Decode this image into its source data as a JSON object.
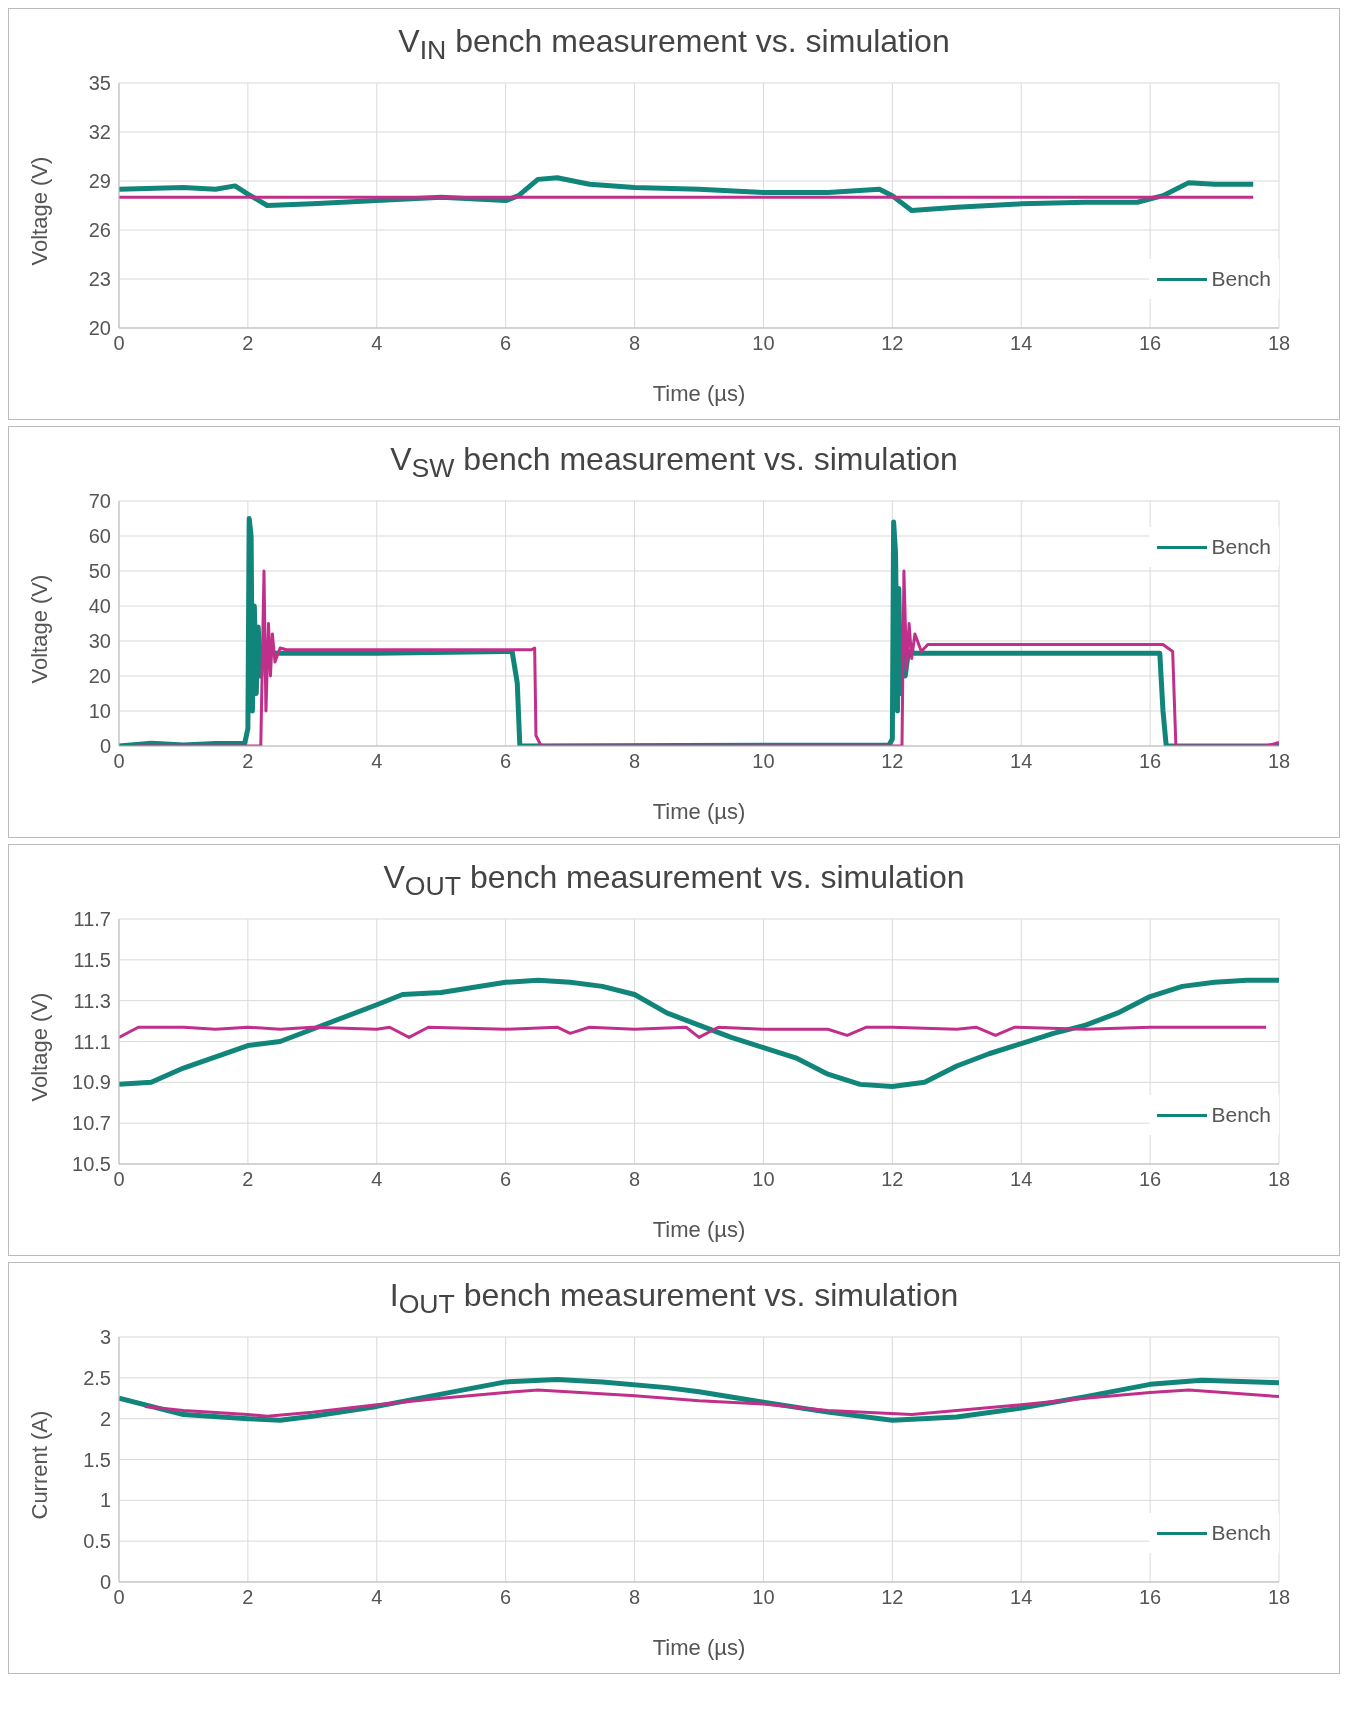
{
  "chart_data": [
    {
      "type": "line",
      "title": "V$_{IN}$ bench measurement vs. simulation",
      "xlabel": "Time (µs)",
      "ylabel": "Voltage (V)",
      "xlim": [
        0,
        18
      ],
      "xticks": [
        0,
        2,
        4,
        6,
        8,
        10,
        12,
        14,
        16,
        18
      ],
      "ylim": [
        20,
        35
      ],
      "yticks": [
        20,
        23,
        26,
        29,
        32,
        35
      ],
      "grid": true,
      "legend": "bottom right",
      "marker": "none",
      "line_style": "solid",
      "series": [
        {
          "name": "Bench",
          "color": "#12857a",
          "x": [
            0,
            1,
            1.5,
            1.8,
            2.0,
            2.3,
            3,
            4,
            5,
            6,
            6.2,
            6.5,
            6.8,
            7.3,
            8,
            9,
            10,
            11,
            11.8,
            12,
            12.3,
            13,
            14,
            15,
            15.8,
            16.2,
            16.6,
            17,
            17.6
          ],
          "values": [
            28.5,
            28.6,
            28.5,
            28.7,
            28.2,
            27.5,
            27.6,
            27.8,
            28.0,
            27.8,
            28.1,
            29.1,
            29.2,
            28.8,
            28.6,
            28.5,
            28.3,
            28.3,
            28.5,
            28.1,
            27.2,
            27.4,
            27.6,
            27.7,
            27.7,
            28.1,
            28.9,
            28.8,
            28.8
          ]
        },
        {
          "color": "#c0308a",
          "x": [
            0,
            17.6
          ],
          "values": [
            28,
            28
          ]
        }
      ]
    },
    {
      "type": "line",
      "title": "V$_{SW}$ bench measurement vs. simulation",
      "xlabel": "Time (µs)",
      "ylabel": "Voltage (V)",
      "xlim": [
        0,
        18
      ],
      "xticks": [
        0,
        2,
        4,
        6,
        8,
        10,
        12,
        14,
        16,
        18
      ],
      "ylim": [
        0,
        70
      ],
      "yticks": [
        0,
        10,
        20,
        30,
        40,
        50,
        60,
        70
      ],
      "grid": true,
      "legend": "top right",
      "marker": "none",
      "line_style": "solid",
      "series": [
        {
          "name": "Bench",
          "color": "#12857a",
          "x": [
            0,
            0.5,
            1,
            1.5,
            1.95,
            2.0,
            2.02,
            2.05,
            2.07,
            2.1,
            2.13,
            2.16,
            2.2,
            2.25,
            2.3,
            2.4,
            4,
            6,
            6.1,
            6.18,
            6.22,
            11.95,
            12.0,
            12.02,
            12.05,
            12.08,
            12.1,
            12.13,
            12.16,
            12.2,
            12.25,
            12.35,
            14,
            16,
            16.15,
            16.2,
            16.25,
            18
          ],
          "values": [
            0,
            0.8,
            0.3,
            0.7,
            0.7,
            5,
            65,
            60,
            10,
            40,
            15,
            34,
            20,
            29,
            27,
            26.5,
            26.5,
            27,
            27,
            18,
            0,
            0.3,
            2,
            64,
            55,
            10,
            45,
            15,
            33,
            20,
            27,
            26.5,
            26.5,
            26.5,
            26.5,
            10,
            0,
            0
          ]
        },
        {
          "color": "#c0308a",
          "x": [
            0.25,
            2.2,
            2.25,
            2.28,
            2.32,
            2.35,
            2.38,
            2.42,
            2.5,
            2.6,
            6.4,
            6.45,
            6.47,
            6.55,
            12.15,
            12.18,
            12.22,
            12.26,
            12.3,
            12.35,
            12.45,
            12.55,
            16.2,
            16.35,
            16.4,
            17.8,
            18
          ],
          "values": [
            0,
            0,
            50,
            10,
            35,
            20,
            32,
            24,
            28,
            27.5,
            27.5,
            28,
            3,
            0,
            0,
            50,
            22,
            35,
            25,
            32,
            27,
            29,
            29,
            27,
            0,
            0,
            1
          ]
        }
      ]
    },
    {
      "type": "line",
      "title": "V$_{OUT}$ bench measurement vs. simulation",
      "xlabel": "Time (µs)",
      "ylabel": "Voltage (V)",
      "xlim": [
        0,
        18
      ],
      "xticks": [
        0,
        2,
        4,
        6,
        8,
        10,
        12,
        14,
        16,
        18
      ],
      "ylim": [
        10.5,
        11.7
      ],
      "yticks": [
        10.5,
        10.7,
        10.9,
        11.1,
        11.3,
        11.5,
        11.7
      ],
      "grid": true,
      "legend": "bottom right",
      "marker": "none",
      "line_style": "solid",
      "series": [
        {
          "name": "Bench",
          "color": "#12857a",
          "x": [
            0,
            0.5,
            1,
            2,
            2.5,
            3,
            4,
            4.4,
            5,
            6,
            6.5,
            7,
            7.5,
            8,
            8.5,
            9,
            9.5,
            10,
            10.5,
            11,
            11.5,
            12,
            12.5,
            13,
            13.5,
            14,
            14.5,
            15,
            15.5,
            16,
            16.5,
            17,
            17.5,
            18
          ],
          "values": [
            10.89,
            10.9,
            10.97,
            11.08,
            11.1,
            11.16,
            11.28,
            11.33,
            11.34,
            11.39,
            11.4,
            11.39,
            11.37,
            11.33,
            11.24,
            11.18,
            11.12,
            11.07,
            11.02,
            10.94,
            10.89,
            10.88,
            10.9,
            10.98,
            11.04,
            11.09,
            11.14,
            11.18,
            11.24,
            11.32,
            11.37,
            11.39,
            11.4,
            11.4
          ]
        },
        {
          "color": "#c0308a",
          "x": [
            0,
            0.3,
            1,
            1.5,
            2,
            2.5,
            3,
            4,
            4.2,
            4.5,
            4.8,
            6,
            6.8,
            7,
            7.3,
            8,
            8.8,
            9,
            9.3,
            10,
            11,
            11.3,
            11.6,
            12,
            13,
            13.3,
            13.6,
            13.9,
            15,
            16,
            17,
            17.8
          ],
          "values": [
            11.12,
            11.17,
            11.17,
            11.16,
            11.17,
            11.16,
            11.17,
            11.16,
            11.17,
            11.12,
            11.17,
            11.16,
            11.17,
            11.14,
            11.17,
            11.16,
            11.17,
            11.12,
            11.17,
            11.16,
            11.16,
            11.13,
            11.17,
            11.17,
            11.16,
            11.17,
            11.13,
            11.17,
            11.16,
            11.17,
            11.17,
            11.17
          ]
        }
      ]
    },
    {
      "type": "line",
      "title": "I$_{OUT}$ bench measurement vs. simulation",
      "xlabel": "Time (µs)",
      "ylabel": "Current (A)",
      "xlim": [
        0,
        18
      ],
      "xticks": [
        0,
        2,
        4,
        6,
        8,
        10,
        12,
        14,
        16,
        18
      ],
      "ylim": [
        0,
        3
      ],
      "yticks": [
        0,
        0.5,
        1,
        1.5,
        2,
        2.5,
        3
      ],
      "grid": true,
      "legend": "bottom right",
      "marker": "none",
      "line_style": "solid",
      "series": [
        {
          "name": "Bench",
          "color": "#12857a",
          "x": [
            0,
            1,
            2,
            2.5,
            3,
            4,
            5,
            6,
            6.8,
            7.5,
            8.5,
            9,
            10,
            11,
            12,
            13,
            14,
            15,
            16,
            16.8,
            18
          ],
          "values": [
            2.25,
            2.05,
            2.0,
            1.98,
            2.03,
            2.15,
            2.3,
            2.45,
            2.48,
            2.45,
            2.38,
            2.33,
            2.2,
            2.08,
            1.98,
            2.02,
            2.13,
            2.27,
            2.42,
            2.47,
            2.44
          ]
        },
        {
          "color": "#c0308a",
          "x": [
            0.4,
            1,
            2,
            2.3,
            3,
            4,
            5,
            6,
            6.5,
            8,
            9,
            10,
            11,
            12.3,
            13,
            14,
            15,
            16,
            16.6,
            18
          ],
          "values": [
            2.15,
            2.1,
            2.05,
            2.03,
            2.08,
            2.17,
            2.25,
            2.32,
            2.35,
            2.28,
            2.22,
            2.18,
            2.1,
            2.05,
            2.1,
            2.17,
            2.25,
            2.32,
            2.35,
            2.27
          ]
        }
      ]
    }
  ]
}
